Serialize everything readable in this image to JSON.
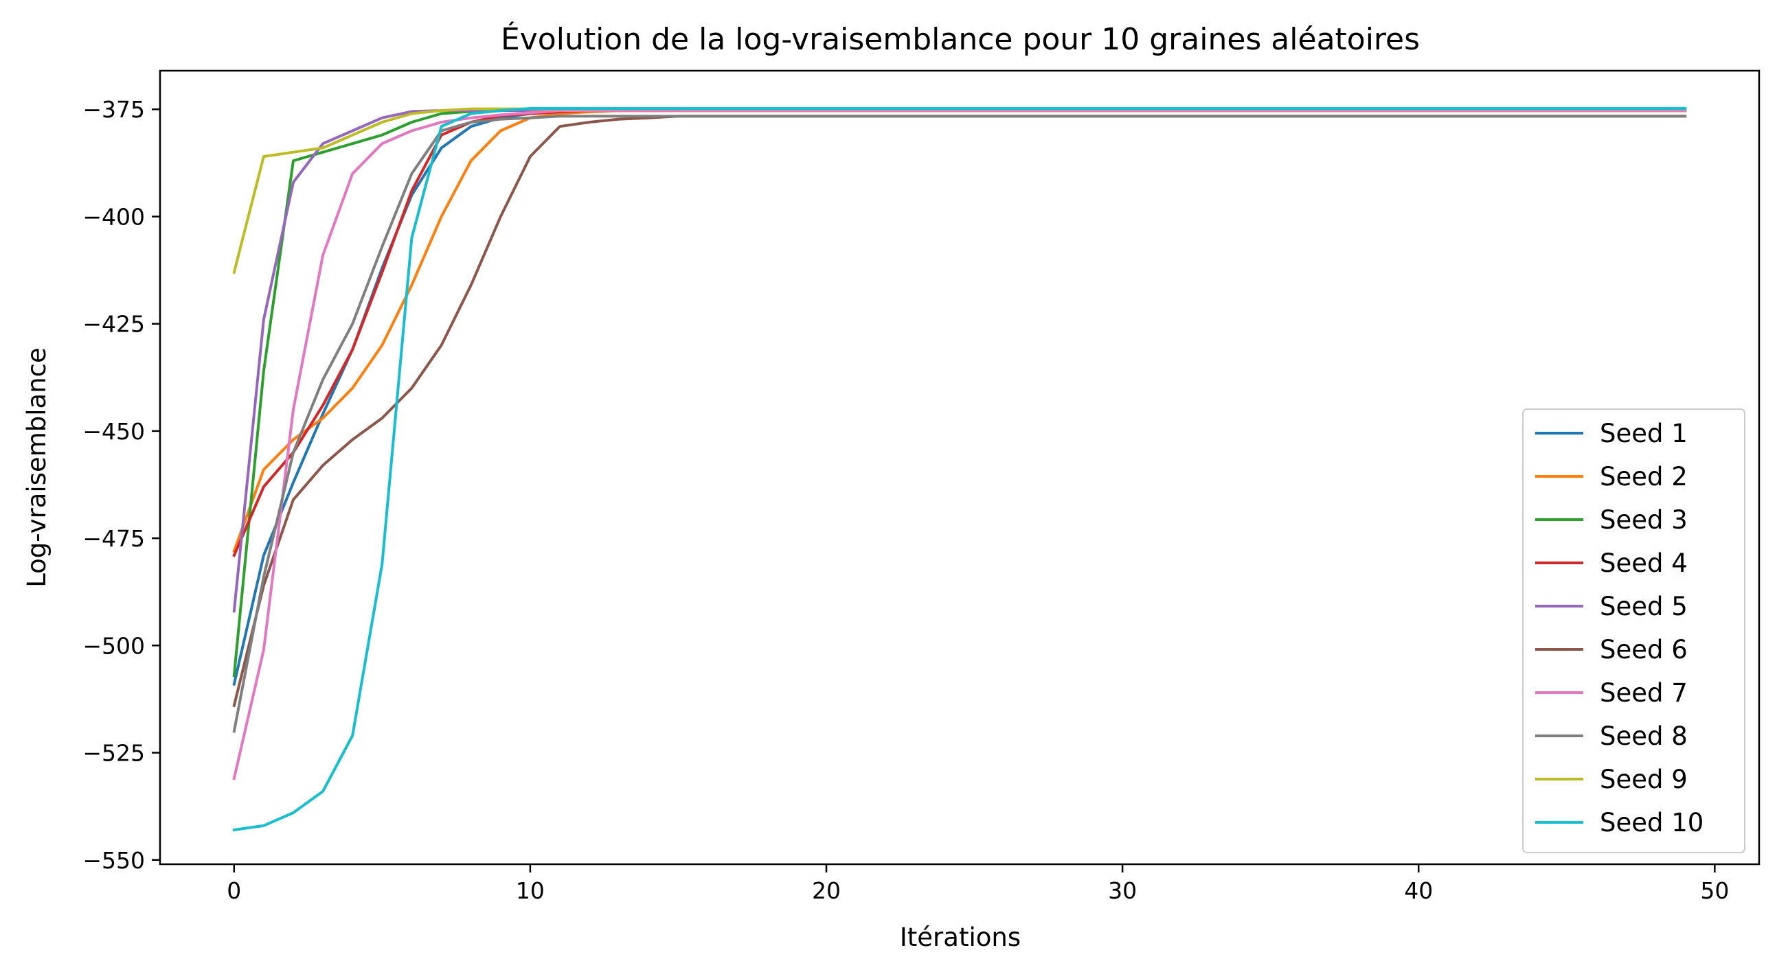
{
  "chart_data": {
    "type": "line",
    "title": "Évolution de la log-vraisemblance pour 10 graines aléatoires",
    "xlabel": "Itérations",
    "ylabel": "Log-vraisemblance",
    "xlim": [
      -2.5,
      51.5
    ],
    "ylim": [
      -551,
      -366
    ],
    "xticks": [
      0,
      10,
      20,
      30,
      40,
      50
    ],
    "yticks": [
      -375,
      -400,
      -425,
      -450,
      -475,
      -500,
      -525,
      -550
    ],
    "xtick_labels": [
      "0",
      "10",
      "20",
      "30",
      "40",
      "50"
    ],
    "ytick_labels": [
      "−375",
      "−400",
      "−425",
      "−450",
      "−475",
      "−500",
      "−525",
      "−550"
    ],
    "grid": false,
    "legend_position": "lower right",
    "x": [
      0,
      1,
      2,
      3,
      4,
      5,
      6,
      7,
      8,
      9,
      10,
      11,
      12,
      13,
      14,
      15,
      16,
      17,
      18,
      19,
      20,
      21,
      22,
      23,
      24,
      25,
      26,
      27,
      28,
      29,
      30,
      31,
      32,
      33,
      34,
      35,
      36,
      37,
      38,
      39,
      40,
      41,
      42,
      43,
      44,
      45,
      46,
      47,
      48,
      49
    ],
    "series": [
      {
        "name": "Seed 1",
        "color": "#1f77b4",
        "converged": -375.2,
        "points": [
          [
            0,
            -509
          ],
          [
            1,
            -479
          ],
          [
            2,
            -462
          ],
          [
            3,
            -446
          ],
          [
            4,
            -431
          ],
          [
            5,
            -412
          ],
          [
            6,
            -395
          ],
          [
            7,
            -384
          ],
          [
            8,
            -379
          ],
          [
            9,
            -377
          ],
          [
            10,
            -376
          ],
          [
            11,
            -375.6
          ],
          [
            12,
            -375.4
          ]
        ]
      },
      {
        "name": "Seed 2",
        "color": "#ff7f0e",
        "converged": -375.3,
        "points": [
          [
            0,
            -478
          ],
          [
            1,
            -459
          ],
          [
            2,
            -452
          ],
          [
            3,
            -447
          ],
          [
            4,
            -440
          ],
          [
            5,
            -430
          ],
          [
            6,
            -416
          ],
          [
            7,
            -400
          ],
          [
            8,
            -387
          ],
          [
            9,
            -380
          ],
          [
            10,
            -377
          ],
          [
            11,
            -376
          ],
          [
            12,
            -375.6
          ]
        ]
      },
      {
        "name": "Seed 3",
        "color": "#2ca02c",
        "converged": -375.2,
        "points": [
          [
            0,
            -507
          ],
          [
            1,
            -436
          ],
          [
            2,
            -387
          ],
          [
            3,
            -385
          ],
          [
            4,
            -383
          ],
          [
            5,
            -381
          ],
          [
            6,
            -378
          ],
          [
            7,
            -376
          ],
          [
            8,
            -375.5
          ]
        ]
      },
      {
        "name": "Seed 4",
        "color": "#d62728",
        "converged": -375.3,
        "points": [
          [
            0,
            -479
          ],
          [
            1,
            -463
          ],
          [
            2,
            -455
          ],
          [
            3,
            -444
          ],
          [
            4,
            -431
          ],
          [
            5,
            -413
          ],
          [
            6,
            -394
          ],
          [
            7,
            -381
          ],
          [
            8,
            -378
          ],
          [
            9,
            -376.5
          ],
          [
            10,
            -376
          ],
          [
            11,
            -375.6
          ]
        ]
      },
      {
        "name": "Seed 5",
        "color": "#9467bd",
        "converged": -375.3,
        "points": [
          [
            0,
            -492
          ],
          [
            1,
            -424
          ],
          [
            2,
            -392
          ],
          [
            3,
            -383
          ],
          [
            4,
            -380
          ],
          [
            5,
            -377
          ],
          [
            6,
            -375.5
          ]
        ]
      },
      {
        "name": "Seed 6",
        "color": "#8c564b",
        "converged": -376.6,
        "points": [
          [
            0,
            -514
          ],
          [
            1,
            -486
          ],
          [
            2,
            -466
          ],
          [
            3,
            -458
          ],
          [
            4,
            -452
          ],
          [
            5,
            -447
          ],
          [
            6,
            -440
          ],
          [
            7,
            -430
          ],
          [
            8,
            -416
          ],
          [
            9,
            -400
          ],
          [
            10,
            -386
          ],
          [
            11,
            -379
          ],
          [
            12,
            -378
          ],
          [
            13,
            -377.3
          ],
          [
            14,
            -377
          ]
        ]
      },
      {
        "name": "Seed 7",
        "color": "#e377c2",
        "converged": -375.3,
        "points": [
          [
            0,
            -531
          ],
          [
            1,
            -501
          ],
          [
            2,
            -445
          ],
          [
            3,
            -409
          ],
          [
            4,
            -390
          ],
          [
            5,
            -383
          ],
          [
            6,
            -380
          ],
          [
            7,
            -378
          ],
          [
            8,
            -377
          ],
          [
            9,
            -376.3
          ],
          [
            10,
            -375.8
          ]
        ]
      },
      {
        "name": "Seed 8",
        "color": "#7f7f7f",
        "converged": -376.6,
        "points": [
          [
            0,
            -520
          ],
          [
            1,
            -484
          ],
          [
            2,
            -455
          ],
          [
            3,
            -438
          ],
          [
            4,
            -425
          ],
          [
            5,
            -407
          ],
          [
            6,
            -390
          ],
          [
            7,
            -380
          ],
          [
            8,
            -378
          ],
          [
            9,
            -377.3
          ],
          [
            10,
            -377
          ]
        ]
      },
      {
        "name": "Seed 9",
        "color": "#bcbd22",
        "converged": -374.9,
        "points": [
          [
            0,
            -413
          ],
          [
            1,
            -386
          ],
          [
            2,
            -385
          ],
          [
            3,
            -384
          ],
          [
            4,
            -381
          ],
          [
            5,
            -378
          ],
          [
            6,
            -376
          ],
          [
            7,
            -375.3
          ]
        ]
      },
      {
        "name": "Seed 10",
        "color": "#17becf",
        "converged": -374.8,
        "points": [
          [
            0,
            -543
          ],
          [
            1,
            -542
          ],
          [
            2,
            -539
          ],
          [
            3,
            -534
          ],
          [
            4,
            -521
          ],
          [
            5,
            -481
          ],
          [
            6,
            -405
          ],
          [
            7,
            -379
          ],
          [
            8,
            -376
          ],
          [
            9,
            -375.3
          ]
        ]
      }
    ]
  }
}
